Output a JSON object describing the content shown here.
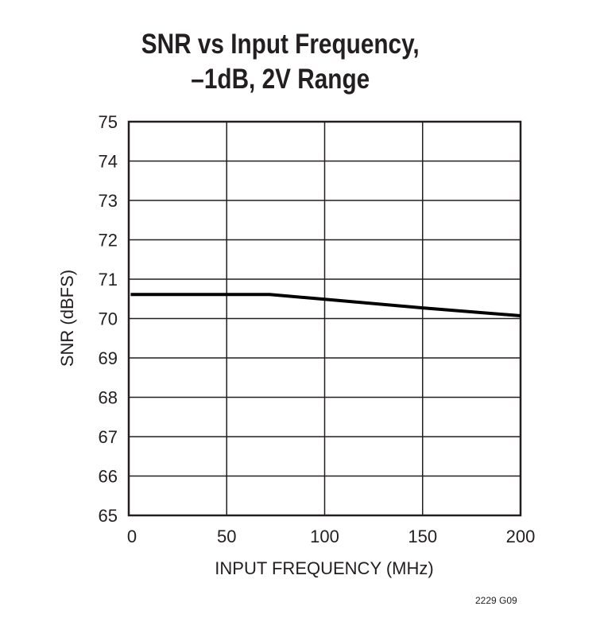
{
  "chart_data": {
    "type": "line",
    "title": [
      "SNR vs Input Frequency,",
      "–1dB, 2V Range"
    ],
    "xlabel": "INPUT FREQUENCY (MHz)",
    "ylabel": "SNR (dBFS)",
    "xlim": [
      0,
      200
    ],
    "ylim": [
      65,
      75
    ],
    "xticks": [
      0,
      50,
      100,
      150,
      200
    ],
    "yticks": [
      65,
      66,
      67,
      68,
      69,
      70,
      71,
      72,
      73,
      74,
      75
    ],
    "grid": true,
    "series": [
      {
        "x": [
          1,
          72,
          100,
          150,
          200
        ],
        "y": [
          70.61,
          70.61,
          70.49,
          70.27,
          70.07
        ],
        "color": "#000000"
      }
    ]
  },
  "footnote": "2229 G09"
}
